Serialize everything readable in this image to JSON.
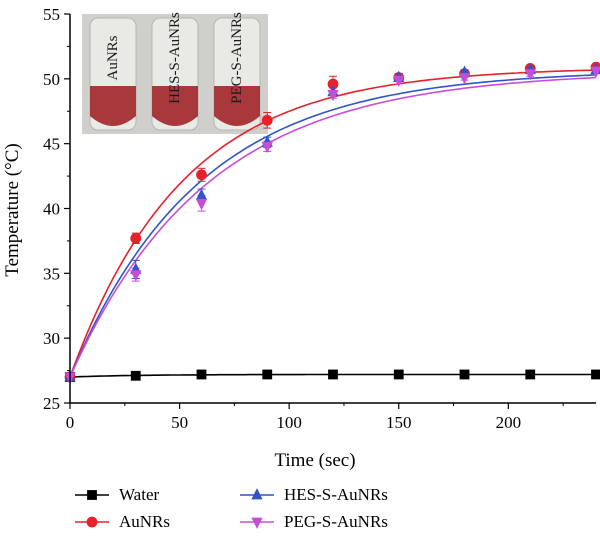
{
  "chart_data": {
    "type": "line",
    "xlabel": "Time (sec)",
    "ylabel": "Temperature (°C)",
    "xlim": [
      0,
      240
    ],
    "ylim": [
      25,
      55
    ],
    "x_ticks": [
      0,
      50,
      100,
      150,
      200
    ],
    "y_ticks": [
      25,
      30,
      35,
      40,
      45,
      50,
      55
    ],
    "x": [
      0,
      30,
      60,
      90,
      120,
      150,
      180,
      210,
      240
    ],
    "grid": false,
    "legend_position": "bottom",
    "series": [
      {
        "name": "Water",
        "color": "#000000",
        "marker": "square",
        "values": [
          27.0,
          27.1,
          27.2,
          27.2,
          27.2,
          27.2,
          27.2,
          27.2,
          27.2
        ],
        "errors": [
          0.1,
          0.1,
          0.1,
          0.1,
          0.1,
          0.1,
          0.1,
          0.1,
          0.1
        ]
      },
      {
        "name": "AuNRs",
        "color": "#e8202a",
        "marker": "circle",
        "values": [
          27.0,
          37.7,
          42.6,
          46.8,
          49.6,
          50.1,
          50.4,
          50.8,
          50.9
        ],
        "errors": [
          0.2,
          0.4,
          0.5,
          0.6,
          0.6,
          0.3,
          0.2,
          0.2,
          0.2
        ]
      },
      {
        "name": "HES-S-AuNRs",
        "color": "#2f55c8",
        "marker": "triangle-up",
        "values": [
          27.0,
          35.3,
          41.0,
          45.1,
          49.0,
          50.1,
          50.5,
          50.7,
          50.7
        ],
        "errors": [
          0.2,
          0.7,
          0.5,
          0.4,
          0.3,
          0.3,
          0.2,
          0.2,
          0.2
        ]
      },
      {
        "name": "PEG-S-AuNRs",
        "color": "#c84dd6",
        "marker": "triangle-down",
        "values": [
          27.0,
          34.9,
          40.4,
          44.8,
          48.8,
          49.9,
          50.1,
          50.4,
          50.6
        ],
        "errors": [
          0.2,
          0.5,
          0.6,
          0.4,
          0.3,
          0.3,
          0.2,
          0.2,
          0.2
        ]
      }
    ],
    "inset_photo_labels": [
      "AuNRs",
      "HES-S-AuNRs",
      "PEG-S-AuNRs"
    ]
  }
}
